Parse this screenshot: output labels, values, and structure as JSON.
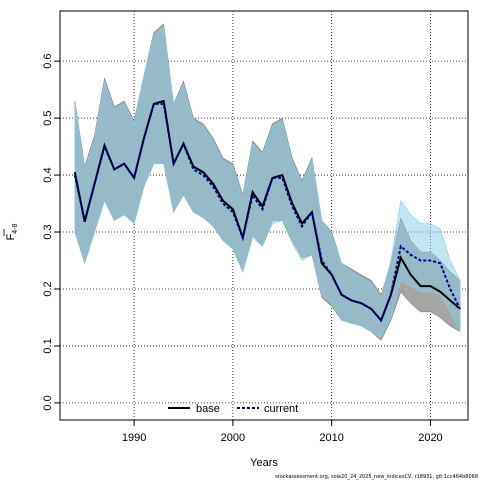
{
  "chart_data": {
    "type": "line",
    "xlabel": "Years",
    "ylabel_main": "F",
    "ylabel_sub": "4-8",
    "xlim": [
      1982.5,
      2023.8
    ],
    "ylim": [
      -0.03,
      0.688
    ],
    "xticks": [
      1990,
      2000,
      2010,
      2020
    ],
    "yticks": [
      0.0,
      0.1,
      0.2,
      0.3,
      0.4,
      0.5,
      0.6
    ],
    "ytick_labels": [
      "0.0",
      "0.1",
      "0.2",
      "0.3",
      "0.4",
      "0.5",
      "0.6"
    ],
    "grid": true,
    "legend_position": "bottom-center",
    "footnote": "stockassessment.org, sole20_24_2025_new_indicesCV, r18931, git:1cc464b8068",
    "colors": {
      "base_band": "#a6a6a6",
      "base_band_stroke": "#7f7f7f",
      "current_band": "#87ceeb",
      "current_line": "#00008b",
      "base_line": "#000000"
    },
    "x": [
      1984,
      1985,
      1986,
      1987,
      1988,
      1989,
      1990,
      1991,
      1992,
      1993,
      1994,
      1995,
      1996,
      1997,
      1998,
      1999,
      2000,
      2001,
      2002,
      2003,
      2004,
      2005,
      2006,
      2007,
      2008,
      2009,
      2010,
      2011,
      2012,
      2013,
      2014,
      2015,
      2016,
      2017,
      2018,
      2019,
      2020,
      2021,
      2022,
      2023
    ],
    "series": [
      {
        "name": "base",
        "values": [
          0.405,
          0.318,
          0.385,
          0.452,
          0.41,
          0.42,
          0.395,
          0.465,
          0.525,
          0.53,
          0.42,
          0.455,
          0.415,
          0.405,
          0.385,
          0.355,
          0.34,
          0.29,
          0.37,
          0.345,
          0.395,
          0.4,
          0.35,
          0.315,
          0.335,
          0.245,
          0.225,
          0.19,
          0.18,
          0.175,
          0.165,
          0.145,
          0.19,
          0.255,
          0.225,
          0.205,
          0.205,
          0.195,
          0.18,
          0.165
        ],
        "lower": [
          0.3,
          0.245,
          0.3,
          0.355,
          0.32,
          0.33,
          0.315,
          0.38,
          0.42,
          0.42,
          0.335,
          0.365,
          0.335,
          0.325,
          0.31,
          0.285,
          0.27,
          0.23,
          0.295,
          0.275,
          0.32,
          0.32,
          0.285,
          0.255,
          0.26,
          0.185,
          0.17,
          0.145,
          0.14,
          0.135,
          0.125,
          0.11,
          0.145,
          0.195,
          0.175,
          0.16,
          0.16,
          0.15,
          0.135,
          0.125
        ],
        "upper": [
          0.53,
          0.415,
          0.47,
          0.57,
          0.52,
          0.53,
          0.495,
          0.575,
          0.65,
          0.665,
          0.525,
          0.565,
          0.5,
          0.49,
          0.465,
          0.43,
          0.42,
          0.365,
          0.46,
          0.44,
          0.49,
          0.5,
          0.43,
          0.39,
          0.43,
          0.32,
          0.3,
          0.245,
          0.235,
          0.225,
          0.215,
          0.19,
          0.245,
          0.325,
          0.285,
          0.265,
          0.265,
          0.25,
          0.23,
          0.215
        ]
      },
      {
        "name": "current",
        "values": [
          0.4,
          0.32,
          0.385,
          0.45,
          0.41,
          0.42,
          0.395,
          0.465,
          0.525,
          0.525,
          0.42,
          0.455,
          0.41,
          0.4,
          0.38,
          0.35,
          0.335,
          0.29,
          0.365,
          0.34,
          0.395,
          0.395,
          0.345,
          0.31,
          0.335,
          0.25,
          0.225,
          0.19,
          0.18,
          0.175,
          0.165,
          0.145,
          0.19,
          0.275,
          0.26,
          0.25,
          0.25,
          0.245,
          0.2,
          0.165
        ],
        "lower": [
          0.3,
          0.245,
          0.3,
          0.355,
          0.32,
          0.33,
          0.315,
          0.38,
          0.42,
          0.42,
          0.335,
          0.365,
          0.335,
          0.325,
          0.31,
          0.285,
          0.27,
          0.23,
          0.29,
          0.275,
          0.315,
          0.32,
          0.28,
          0.25,
          0.26,
          0.19,
          0.175,
          0.145,
          0.14,
          0.135,
          0.125,
          0.115,
          0.15,
          0.215,
          0.205,
          0.195,
          0.195,
          0.19,
          0.16,
          0.125
        ],
        "upper": [
          0.525,
          0.41,
          0.465,
          0.565,
          0.515,
          0.525,
          0.49,
          0.575,
          0.645,
          0.66,
          0.525,
          0.56,
          0.495,
          0.485,
          0.46,
          0.425,
          0.415,
          0.36,
          0.455,
          0.435,
          0.485,
          0.495,
          0.425,
          0.385,
          0.425,
          0.32,
          0.295,
          0.245,
          0.23,
          0.22,
          0.21,
          0.185,
          0.25,
          0.355,
          0.33,
          0.315,
          0.315,
          0.305,
          0.25,
          0.215
        ]
      }
    ]
  }
}
